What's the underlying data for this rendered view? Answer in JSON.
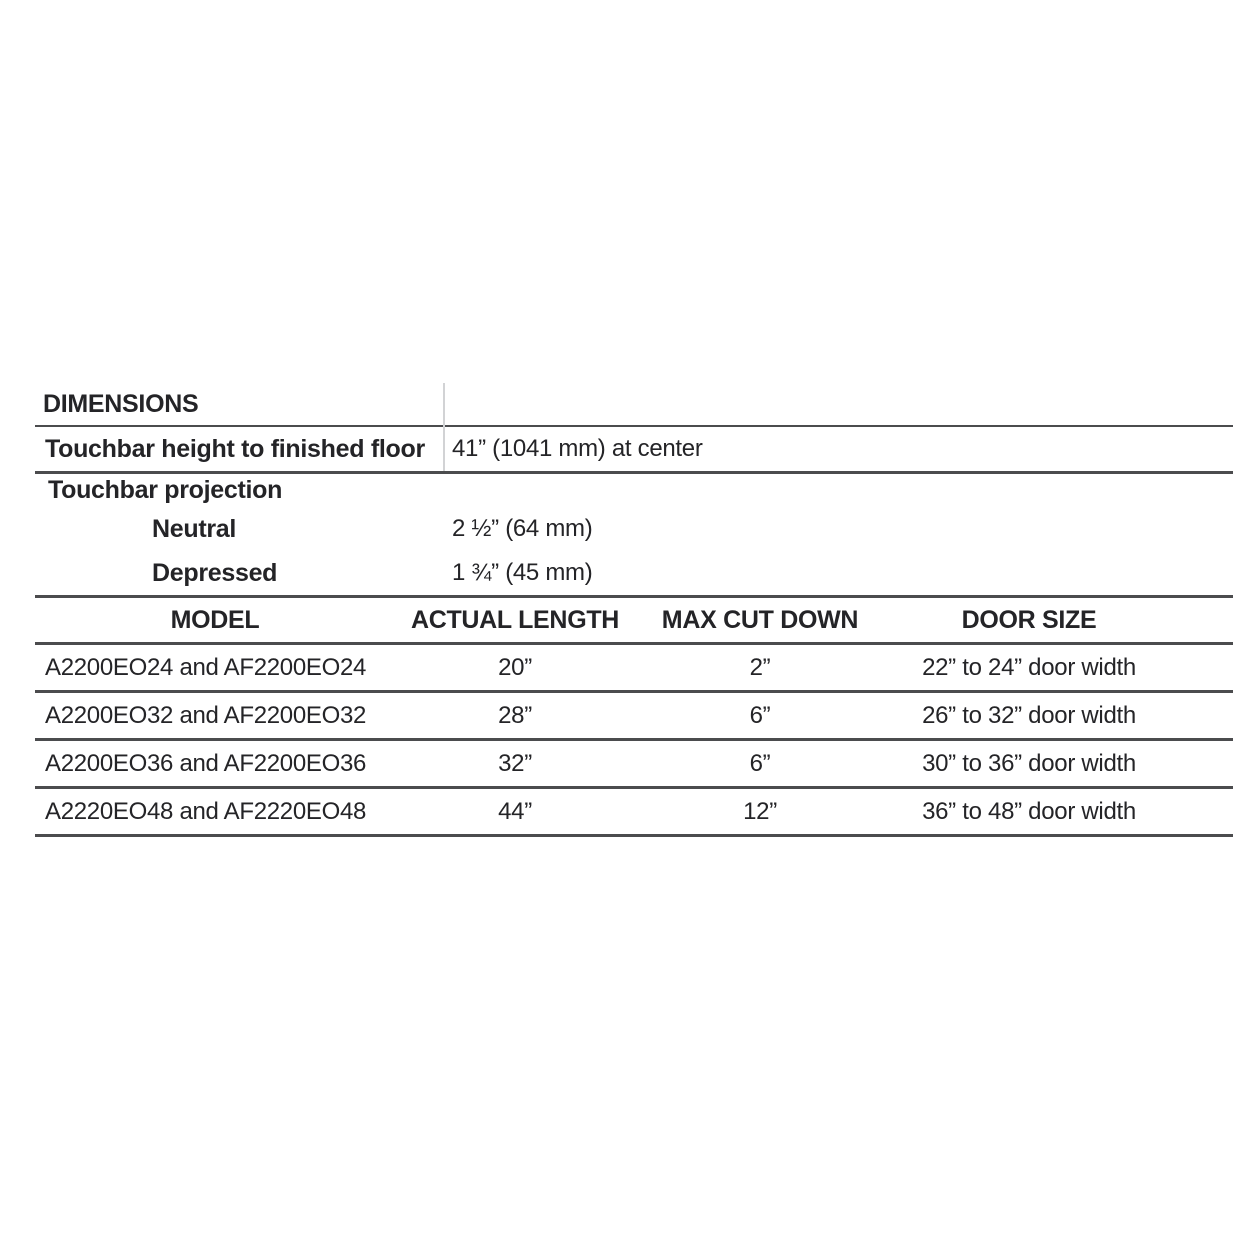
{
  "section_title": "DIMENSIONS",
  "specs": {
    "rows": [
      {
        "label": "Touchbar height to finished floor",
        "value": "41” (1041 mm) at center"
      },
      {
        "label": "Touchbar projection",
        "value": ""
      },
      {
        "label": "Neutral",
        "value": "2 ½” (64 mm)"
      },
      {
        "label": "Depressed",
        "value": "1 ¾” (45 mm)"
      }
    ]
  },
  "table": {
    "headers": [
      "MODEL",
      "ACTUAL LENGTH",
      "MAX CUT DOWN",
      "DOOR SIZE"
    ],
    "rows": [
      [
        "A2200EO24 and AF2200EO24",
        "20”",
        "2”",
        "22” to 24” door width"
      ],
      [
        "A2200EO32 and AF2200EO32",
        "28”",
        "6”",
        "26” to 32” door width"
      ],
      [
        "A2200EO36 and AF2200EO36",
        "32”",
        "6”",
        "30” to 36” door width"
      ],
      [
        "A2220EO48 and AF2220EO48",
        "44”",
        "12”",
        "36” to 48” door width"
      ]
    ]
  },
  "colors": {
    "text": "#242427",
    "line": "#4b4c4e",
    "divider_light": "#d2d3d5",
    "background": "#ffffff"
  }
}
